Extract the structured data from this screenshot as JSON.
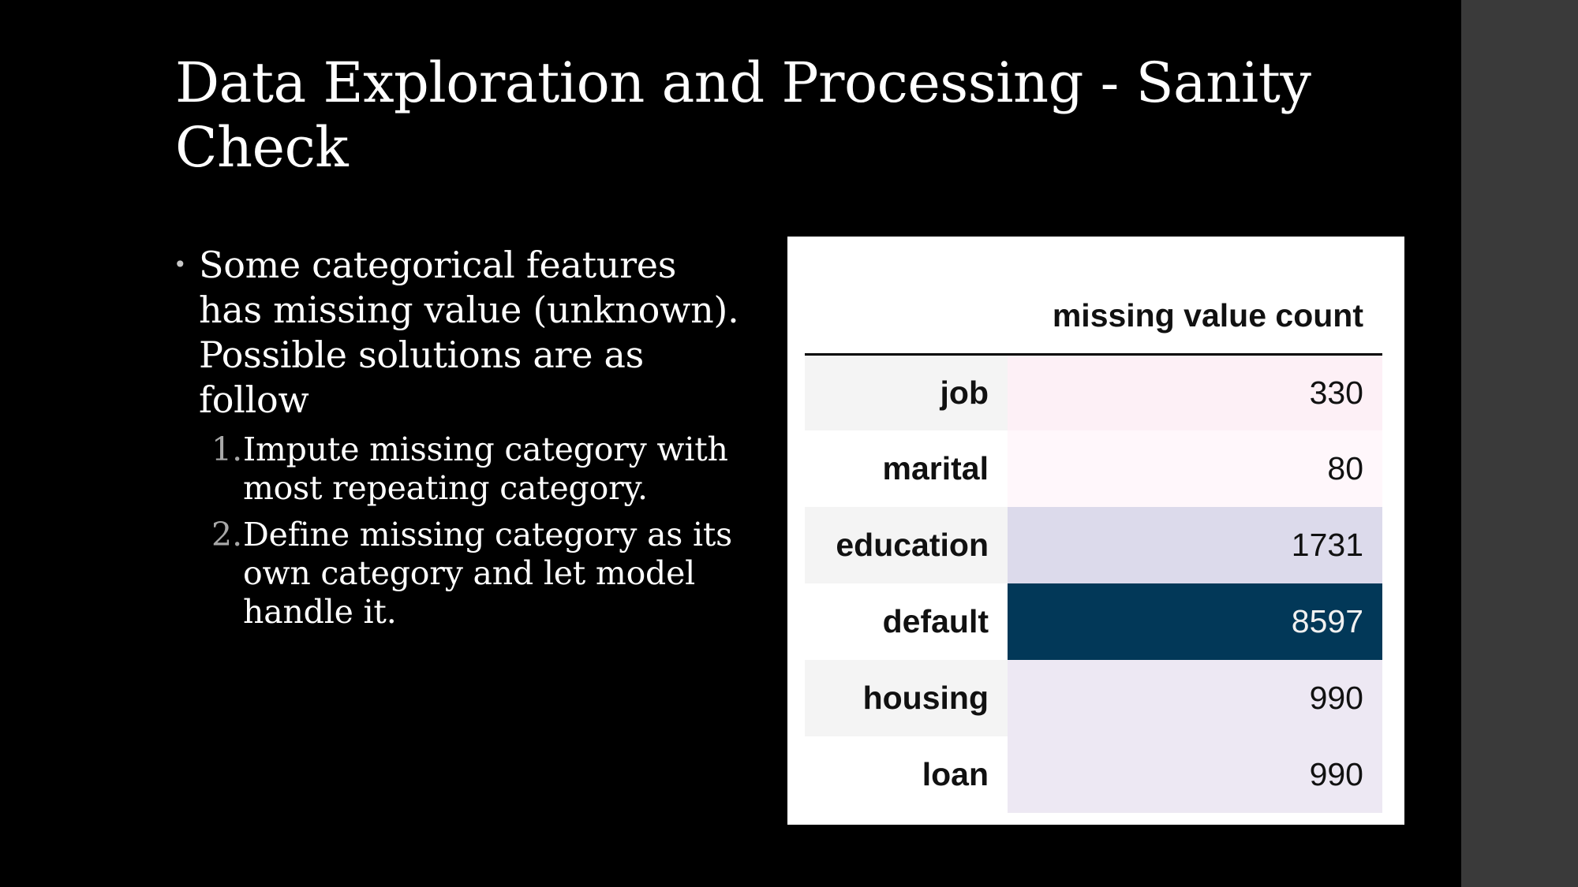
{
  "slide": {
    "title": "Data Exploration and Processing - Sanity Check",
    "bullet": {
      "text": "Some categorical features has missing value (unknown). Possible solutions are as follow"
    },
    "numbered": [
      {
        "label": "1.",
        "text": "Impute missing category with most repeating category."
      },
      {
        "label": "2.",
        "text": "Define missing category as its own category and let model handle it."
      }
    ]
  },
  "table": {
    "column_header": "missing value count",
    "rows": [
      {
        "feature": "job",
        "count": "330",
        "bg": "#fdf0f6",
        "fg": "#111111"
      },
      {
        "feature": "marital",
        "count": "80",
        "bg": "#fff7fb",
        "fg": "#111111"
      },
      {
        "feature": "education",
        "count": "1731",
        "bg": "#dcdaeb",
        "fg": "#111111"
      },
      {
        "feature": "default",
        "count": "8597",
        "bg": "#023858",
        "fg": "#f1f1f1"
      },
      {
        "feature": "housing",
        "count": "990",
        "bg": "#ede8f3",
        "fg": "#111111"
      },
      {
        "feature": "loan",
        "count": "990",
        "bg": "#ede8f3",
        "fg": "#111111"
      }
    ]
  }
}
